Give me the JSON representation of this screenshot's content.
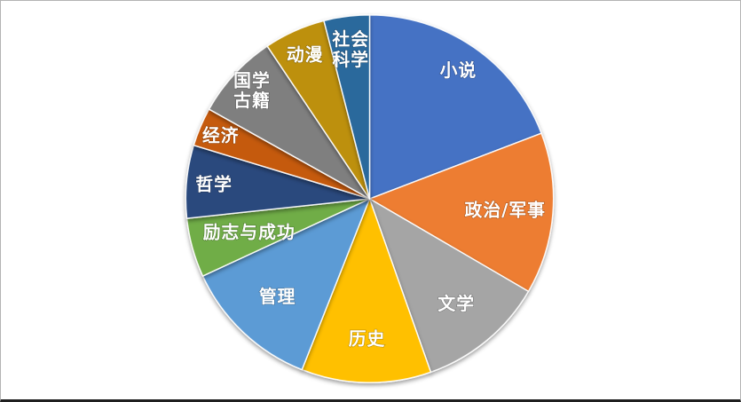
{
  "chart_data": {
    "type": "pie",
    "title": "",
    "legend": "none",
    "start_angle_deg": 0,
    "direction": "clockwise",
    "label_color": "#FFFFFF",
    "background": "#FFFFFF",
    "slices": [
      {
        "key": "novel",
        "label": "小说",
        "value": 19.2,
        "color": "#4472C4"
      },
      {
        "key": "politics-military",
        "label": "政治/军事",
        "value": 14.2,
        "color": "#ED7D31"
      },
      {
        "key": "literature",
        "label": "文学",
        "value": 11.2,
        "color": "#A5A5A5"
      },
      {
        "key": "history",
        "label": "历史",
        "value": 11.4,
        "color": "#FFC000"
      },
      {
        "key": "management",
        "label": "管理",
        "value": 12.1,
        "color": "#5B9BD5"
      },
      {
        "key": "inspiration-success",
        "label": "励志与成功",
        "value": 5.2,
        "color": "#70AD47"
      },
      {
        "key": "philosophy",
        "label": "哲学",
        "value": 6.4,
        "color": "#2A4A7D"
      },
      {
        "key": "economics",
        "label": "经济",
        "value": 3.4,
        "color": "#C55A11"
      },
      {
        "key": "chinese-classics",
        "label": "国学\n古籍",
        "value": 7.5,
        "color": "#7F7F7F"
      },
      {
        "key": "animation",
        "label": "动漫",
        "value": 5.4,
        "color": "#BD9010"
      },
      {
        "key": "social-science",
        "label": "社会\n科学",
        "value": 4.0,
        "color": "#29699C"
      }
    ]
  }
}
